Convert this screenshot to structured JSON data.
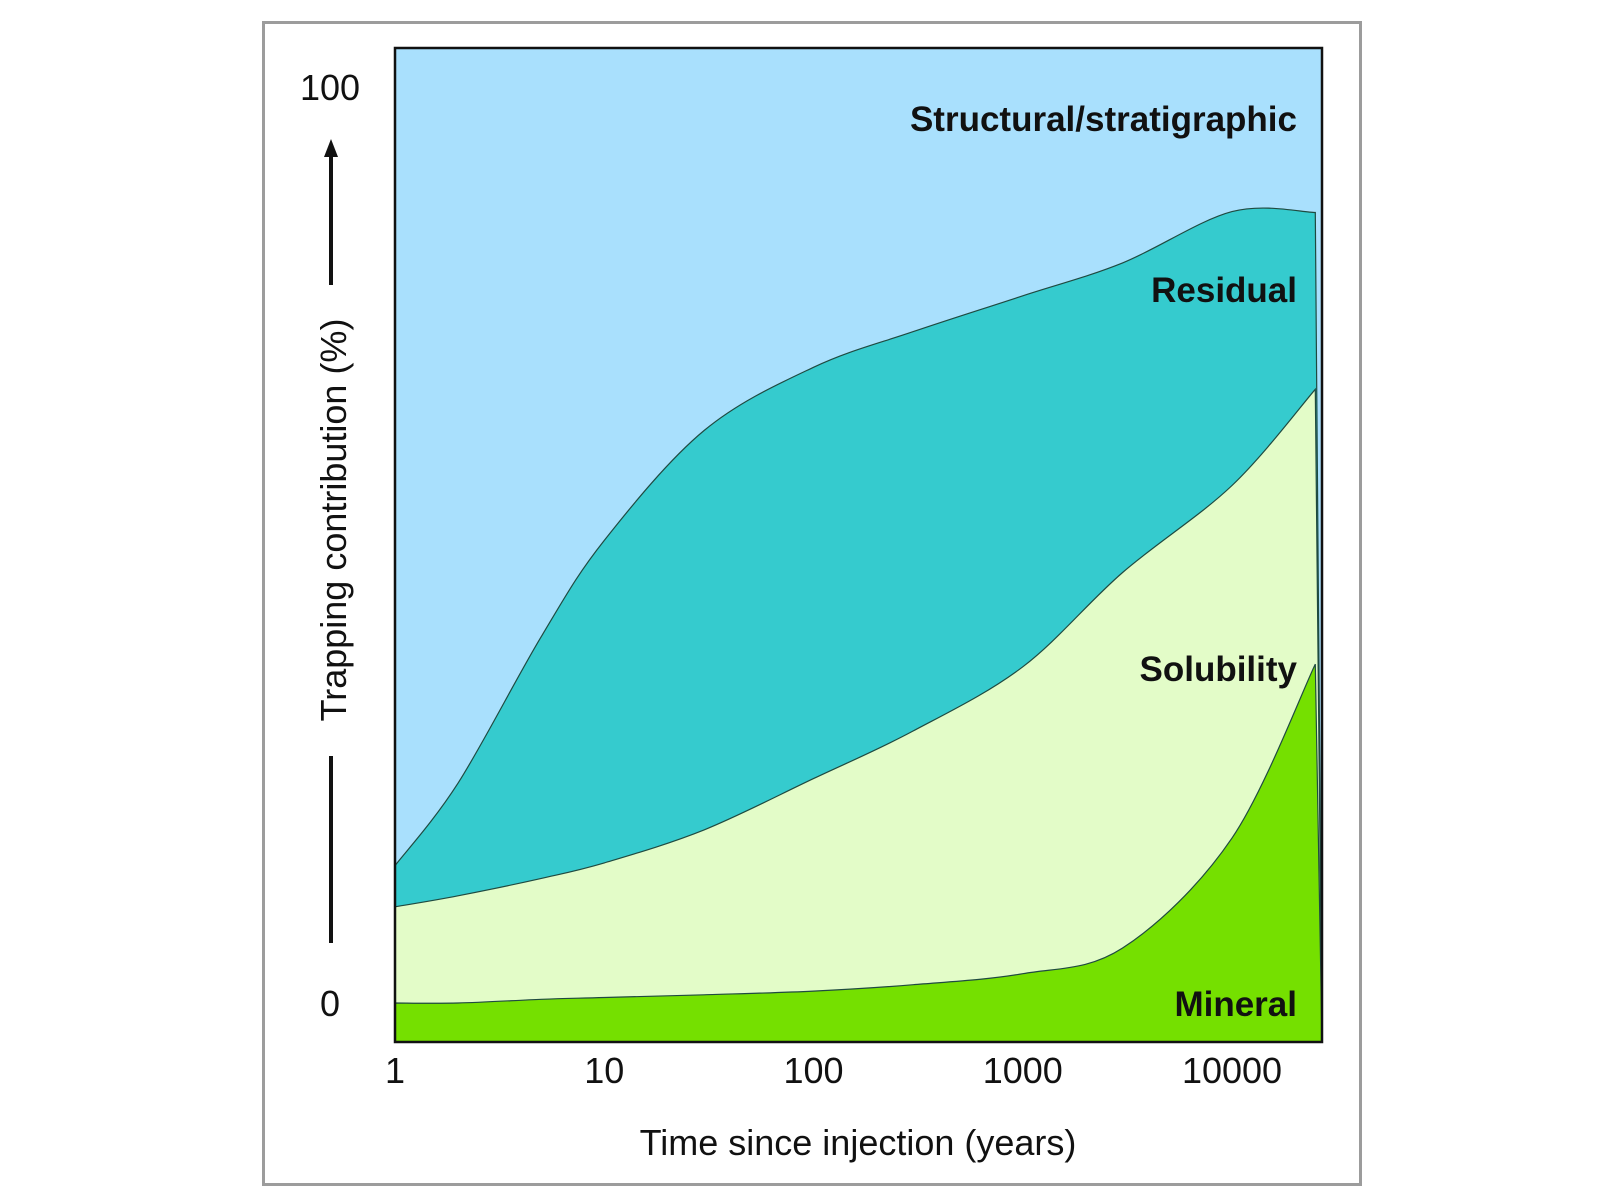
{
  "chart_data": {
    "type": "area",
    "stacked": true,
    "x_scale": "log",
    "xlabel": "Time since injection  (years)",
    "ylabel": "Trapping contribution  (%)",
    "x_ticks": [
      "1",
      "10",
      "100",
      "1000",
      "10000"
    ],
    "y_ticks": [
      "0",
      "100"
    ],
    "xlim": [
      1,
      25000
    ],
    "ylim": [
      0,
      100
    ],
    "x": [
      1,
      2,
      5,
      10,
      30,
      100,
      300,
      1000,
      3000,
      10000,
      25000
    ],
    "boundaries": {
      "mineral_top": [
        0,
        0,
        0.4,
        0.6,
        0.9,
        1.3,
        2.0,
        3.2,
        6,
        18,
        37
      ],
      "solubility_top": [
        10.5,
        11.7,
        13.6,
        15.3,
        18.9,
        24.5,
        29.7,
        36.7,
        47,
        56.5,
        67
      ],
      "residual_top": [
        15,
        24,
        40,
        50.5,
        62.5,
        69.4,
        73.3,
        77.2,
        80.8,
        86.4,
        86.3
      ]
    },
    "series": [
      {
        "name": "Mineral",
        "color": "#75e000"
      },
      {
        "name": "Solubility",
        "color": "#e3fcc8"
      },
      {
        "name": "Residual",
        "color": "#35cbce"
      },
      {
        "name": "Structural/stratigraphic",
        "color": "#a9e0fd"
      }
    ],
    "grid": false,
    "legend": "labels inside areas (right side)"
  }
}
